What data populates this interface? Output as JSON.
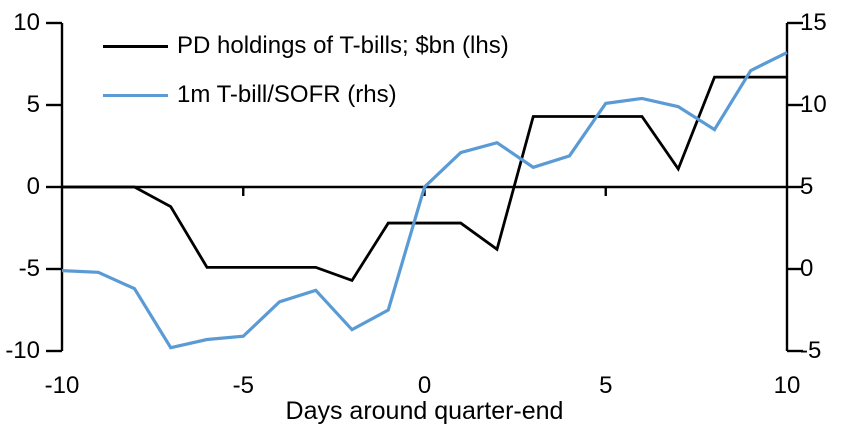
{
  "chart_data": {
    "type": "line",
    "title": "",
    "xlabel": "Days around quarter-end",
    "x": [
      -10,
      -9,
      -8,
      -7,
      -6,
      -5,
      -4,
      -3,
      -2,
      -1,
      0,
      1,
      2,
      3,
      4,
      5,
      6,
      7,
      8,
      9,
      10
    ],
    "series": [
      {
        "name": "PD holdings of T-bills; $bn (lhs)",
        "axis": "left",
        "color": "#000000",
        "values": [
          0,
          0,
          0,
          -1.2,
          -4.9,
          -4.9,
          -4.9,
          -4.9,
          -5.7,
          -2.2,
          -2.2,
          -2.2,
          -3.8,
          4.3,
          4.3,
          4.3,
          4.3,
          1.1,
          6.7,
          6.7,
          6.7
        ]
      },
      {
        "name": "1m T-bill/SOFR (rhs)",
        "axis": "right",
        "color": "#5B9BD5",
        "values": [
          -0.1,
          -0.2,
          -1.2,
          -4.8,
          -4.3,
          -4.1,
          -2.0,
          -1.3,
          -3.7,
          -2.5,
          5.0,
          7.1,
          7.7,
          6.2,
          6.9,
          10.1,
          10.4,
          9.9,
          8.5,
          12.1,
          13.2
        ]
      }
    ],
    "axes": {
      "left": {
        "min": -10,
        "max": 10,
        "ticks": [
          10,
          5,
          0,
          -5,
          -10
        ]
      },
      "right": {
        "min": -5,
        "max": 15,
        "ticks": [
          15,
          10,
          5,
          0,
          -5
        ]
      },
      "x": {
        "min": -10,
        "max": 10,
        "ticks": [
          -10,
          -5,
          0,
          5,
          10
        ],
        "midline_tick_days": [
          -5,
          0,
          5
        ]
      }
    },
    "grid": false,
    "legend_position": "top-left"
  }
}
